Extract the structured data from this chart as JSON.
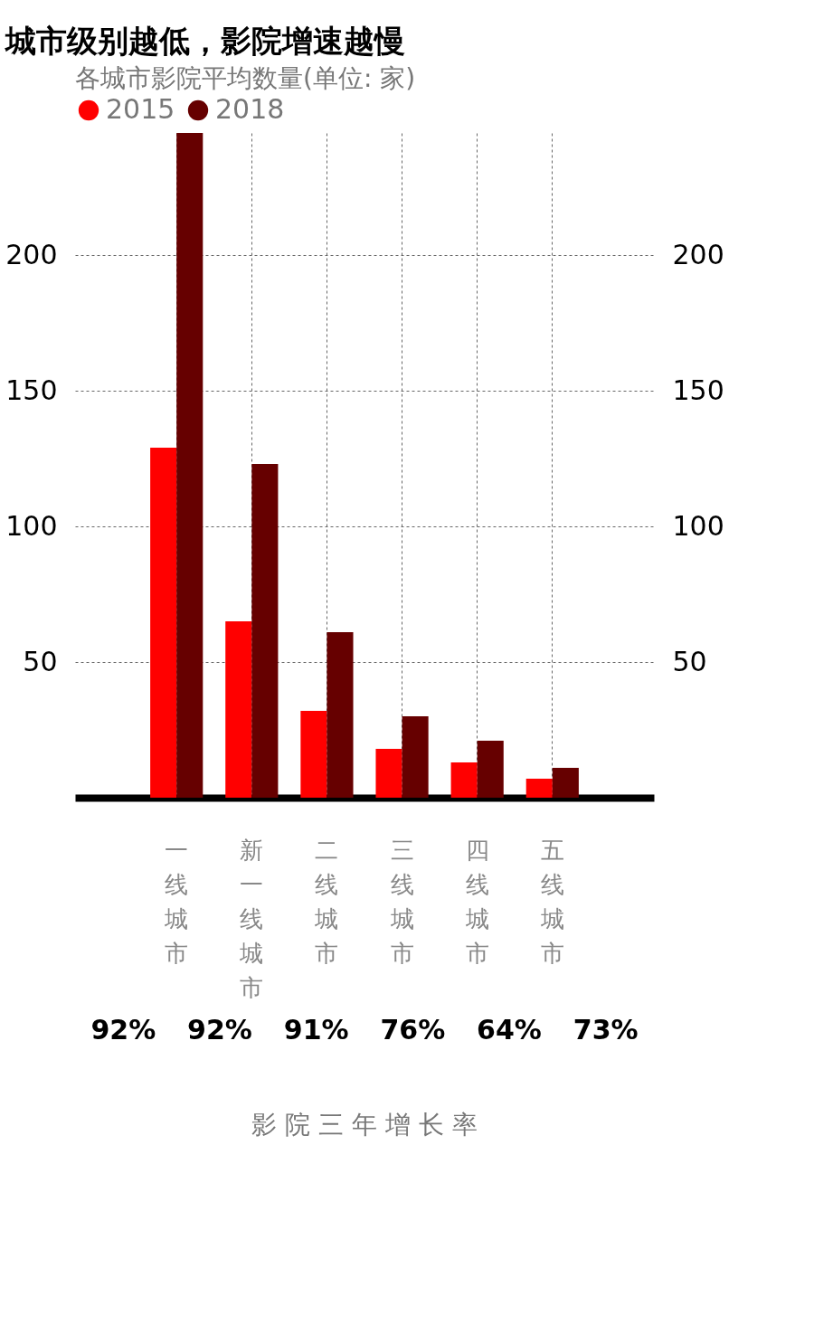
{
  "chart_data": {
    "type": "bar",
    "title": "城市级别越低，影院增速越慢",
    "categories": [
      "一线城市",
      "新一线城市",
      "二线城市",
      "三线城市",
      "四线城市",
      "五线城市"
    ],
    "series": [
      {
        "name": "2015",
        "color": "#ff0000",
        "values": [
          129,
          65,
          32,
          18,
          13,
          7
        ]
      },
      {
        "name": "2018",
        "color": "#660000",
        "values": [
          245,
          123,
          61,
          30,
          21,
          11
        ]
      }
    ],
    "legend_title": "各城市影院平均数量(单位: 家)",
    "legend": "top",
    "ylim": [
      0,
      245
    ],
    "yticks": [
      50,
      100,
      150,
      200
    ],
    "y2lim": [
      0,
      245
    ],
    "y2ticks": [
      50,
      100,
      150,
      200
    ],
    "grid": true,
    "annotations": [
      "92%",
      "92%",
      "91%",
      "76%",
      "64%",
      "73%",
      "影 院 三 年 增 长 率"
    ]
  }
}
